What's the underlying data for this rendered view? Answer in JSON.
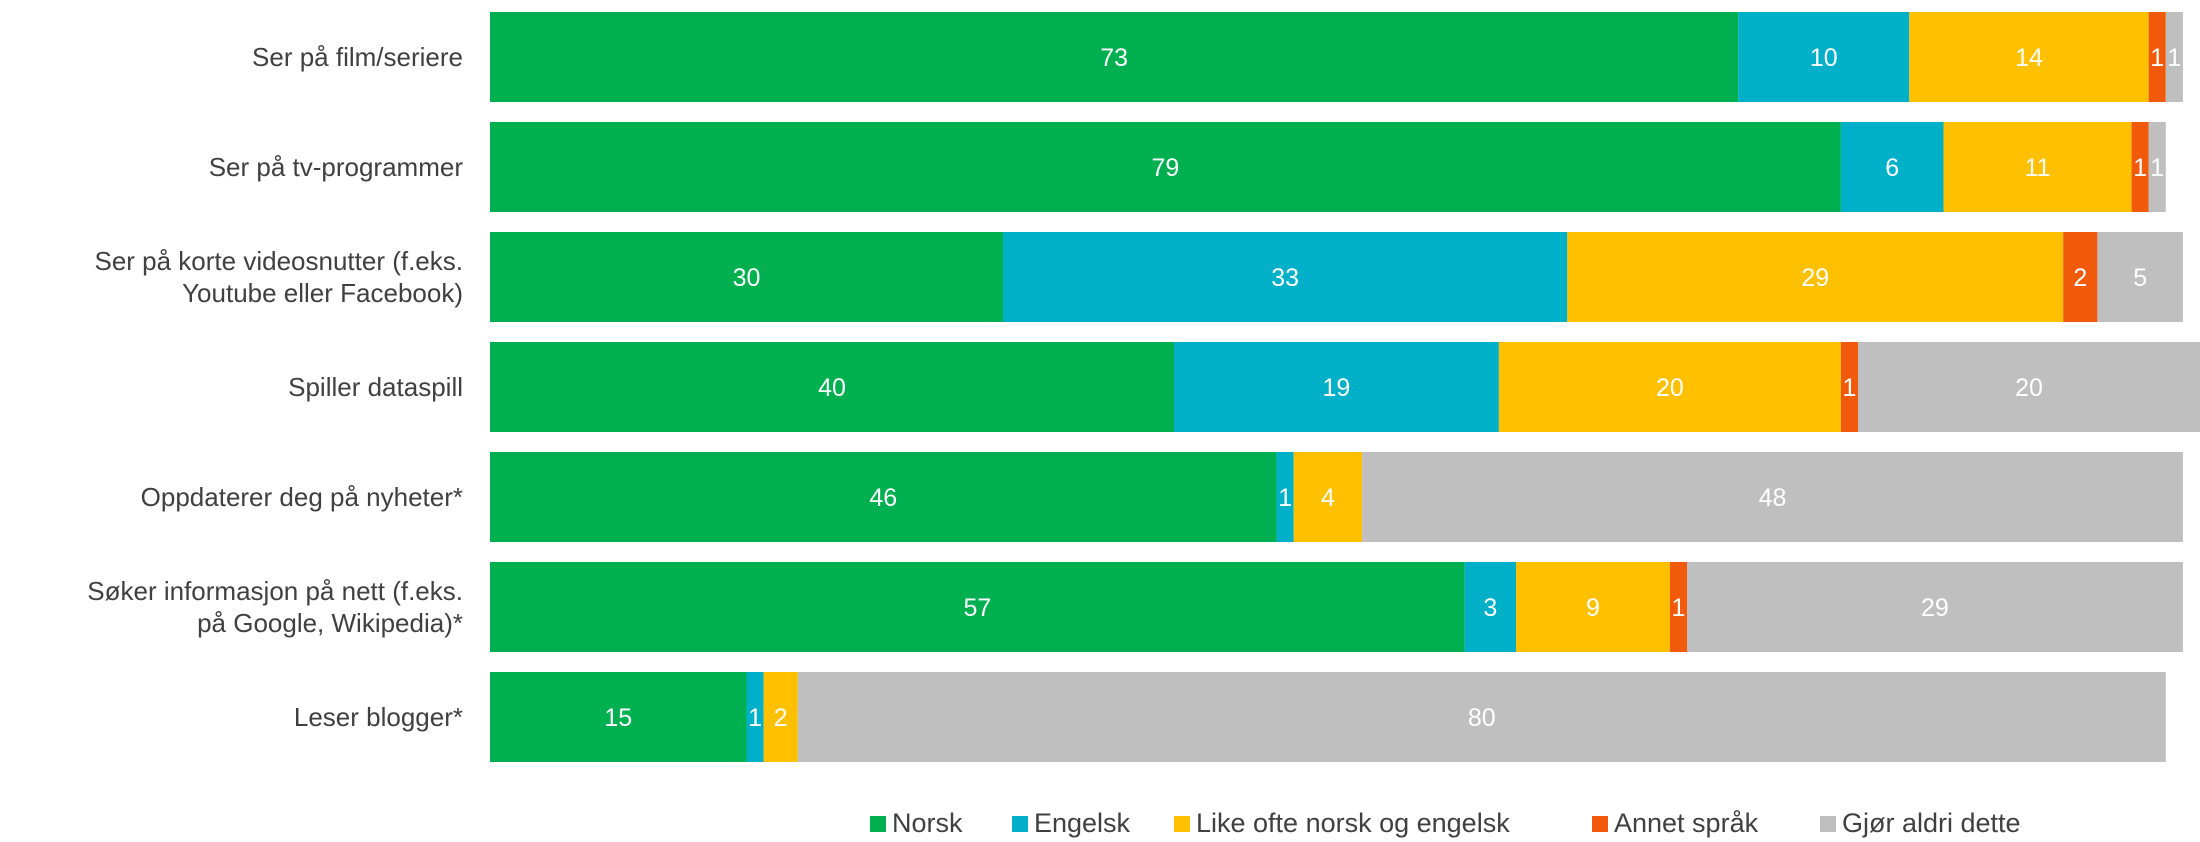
{
  "chart_data": {
    "type": "bar",
    "orientation": "horizontal",
    "stacked": true,
    "categories": [
      "Ser på film/seriere",
      "Ser på tv-programmer",
      "Ser på korte videosnutter (f.eks. Youtube eller Facebook)",
      "Spiller dataspill",
      "Oppdaterer deg på nyheter*",
      "Søker informasjon på nett (f.eks. på Google, Wikipedia)*",
      "Leser blogger*"
    ],
    "category_lines": [
      [
        "Ser på film/seriere"
      ],
      [
        "Ser på tv-programmer"
      ],
      [
        "Ser på korte videosnutter (f.eks.",
        "Youtube eller Facebook)"
      ],
      [
        "Spiller dataspill"
      ],
      [
        "Oppdaterer deg på nyheter*"
      ],
      [
        "Søker informasjon på nett (f.eks.",
        "på Google, Wikipedia)*"
      ],
      [
        "Leser blogger*"
      ]
    ],
    "series": [
      {
        "name": "Norsk",
        "color": "#00b050",
        "values": [
          73,
          79,
          30,
          40,
          46,
          57,
          15
        ]
      },
      {
        "name": "Engelsk",
        "color": "#00b0c8",
        "values": [
          10,
          6,
          33,
          19,
          1,
          3,
          1
        ]
      },
      {
        "name": "Like ofte norsk og engelsk",
        "color": "#ffc000",
        "values": [
          14,
          11,
          29,
          20,
          4,
          9,
          2
        ]
      },
      {
        "name": "Annet språk",
        "color": "#f05a0a",
        "values": [
          1,
          1,
          2,
          1,
          0,
          1,
          0
        ]
      },
      {
        "name": "Gjør aldri dette",
        "color": "#bfbfbf",
        "values": [
          1,
          1,
          5,
          20,
          48,
          29,
          80
        ]
      }
    ],
    "xlim": [
      0,
      100
    ],
    "legend_position": "bottom",
    "grid": false
  }
}
